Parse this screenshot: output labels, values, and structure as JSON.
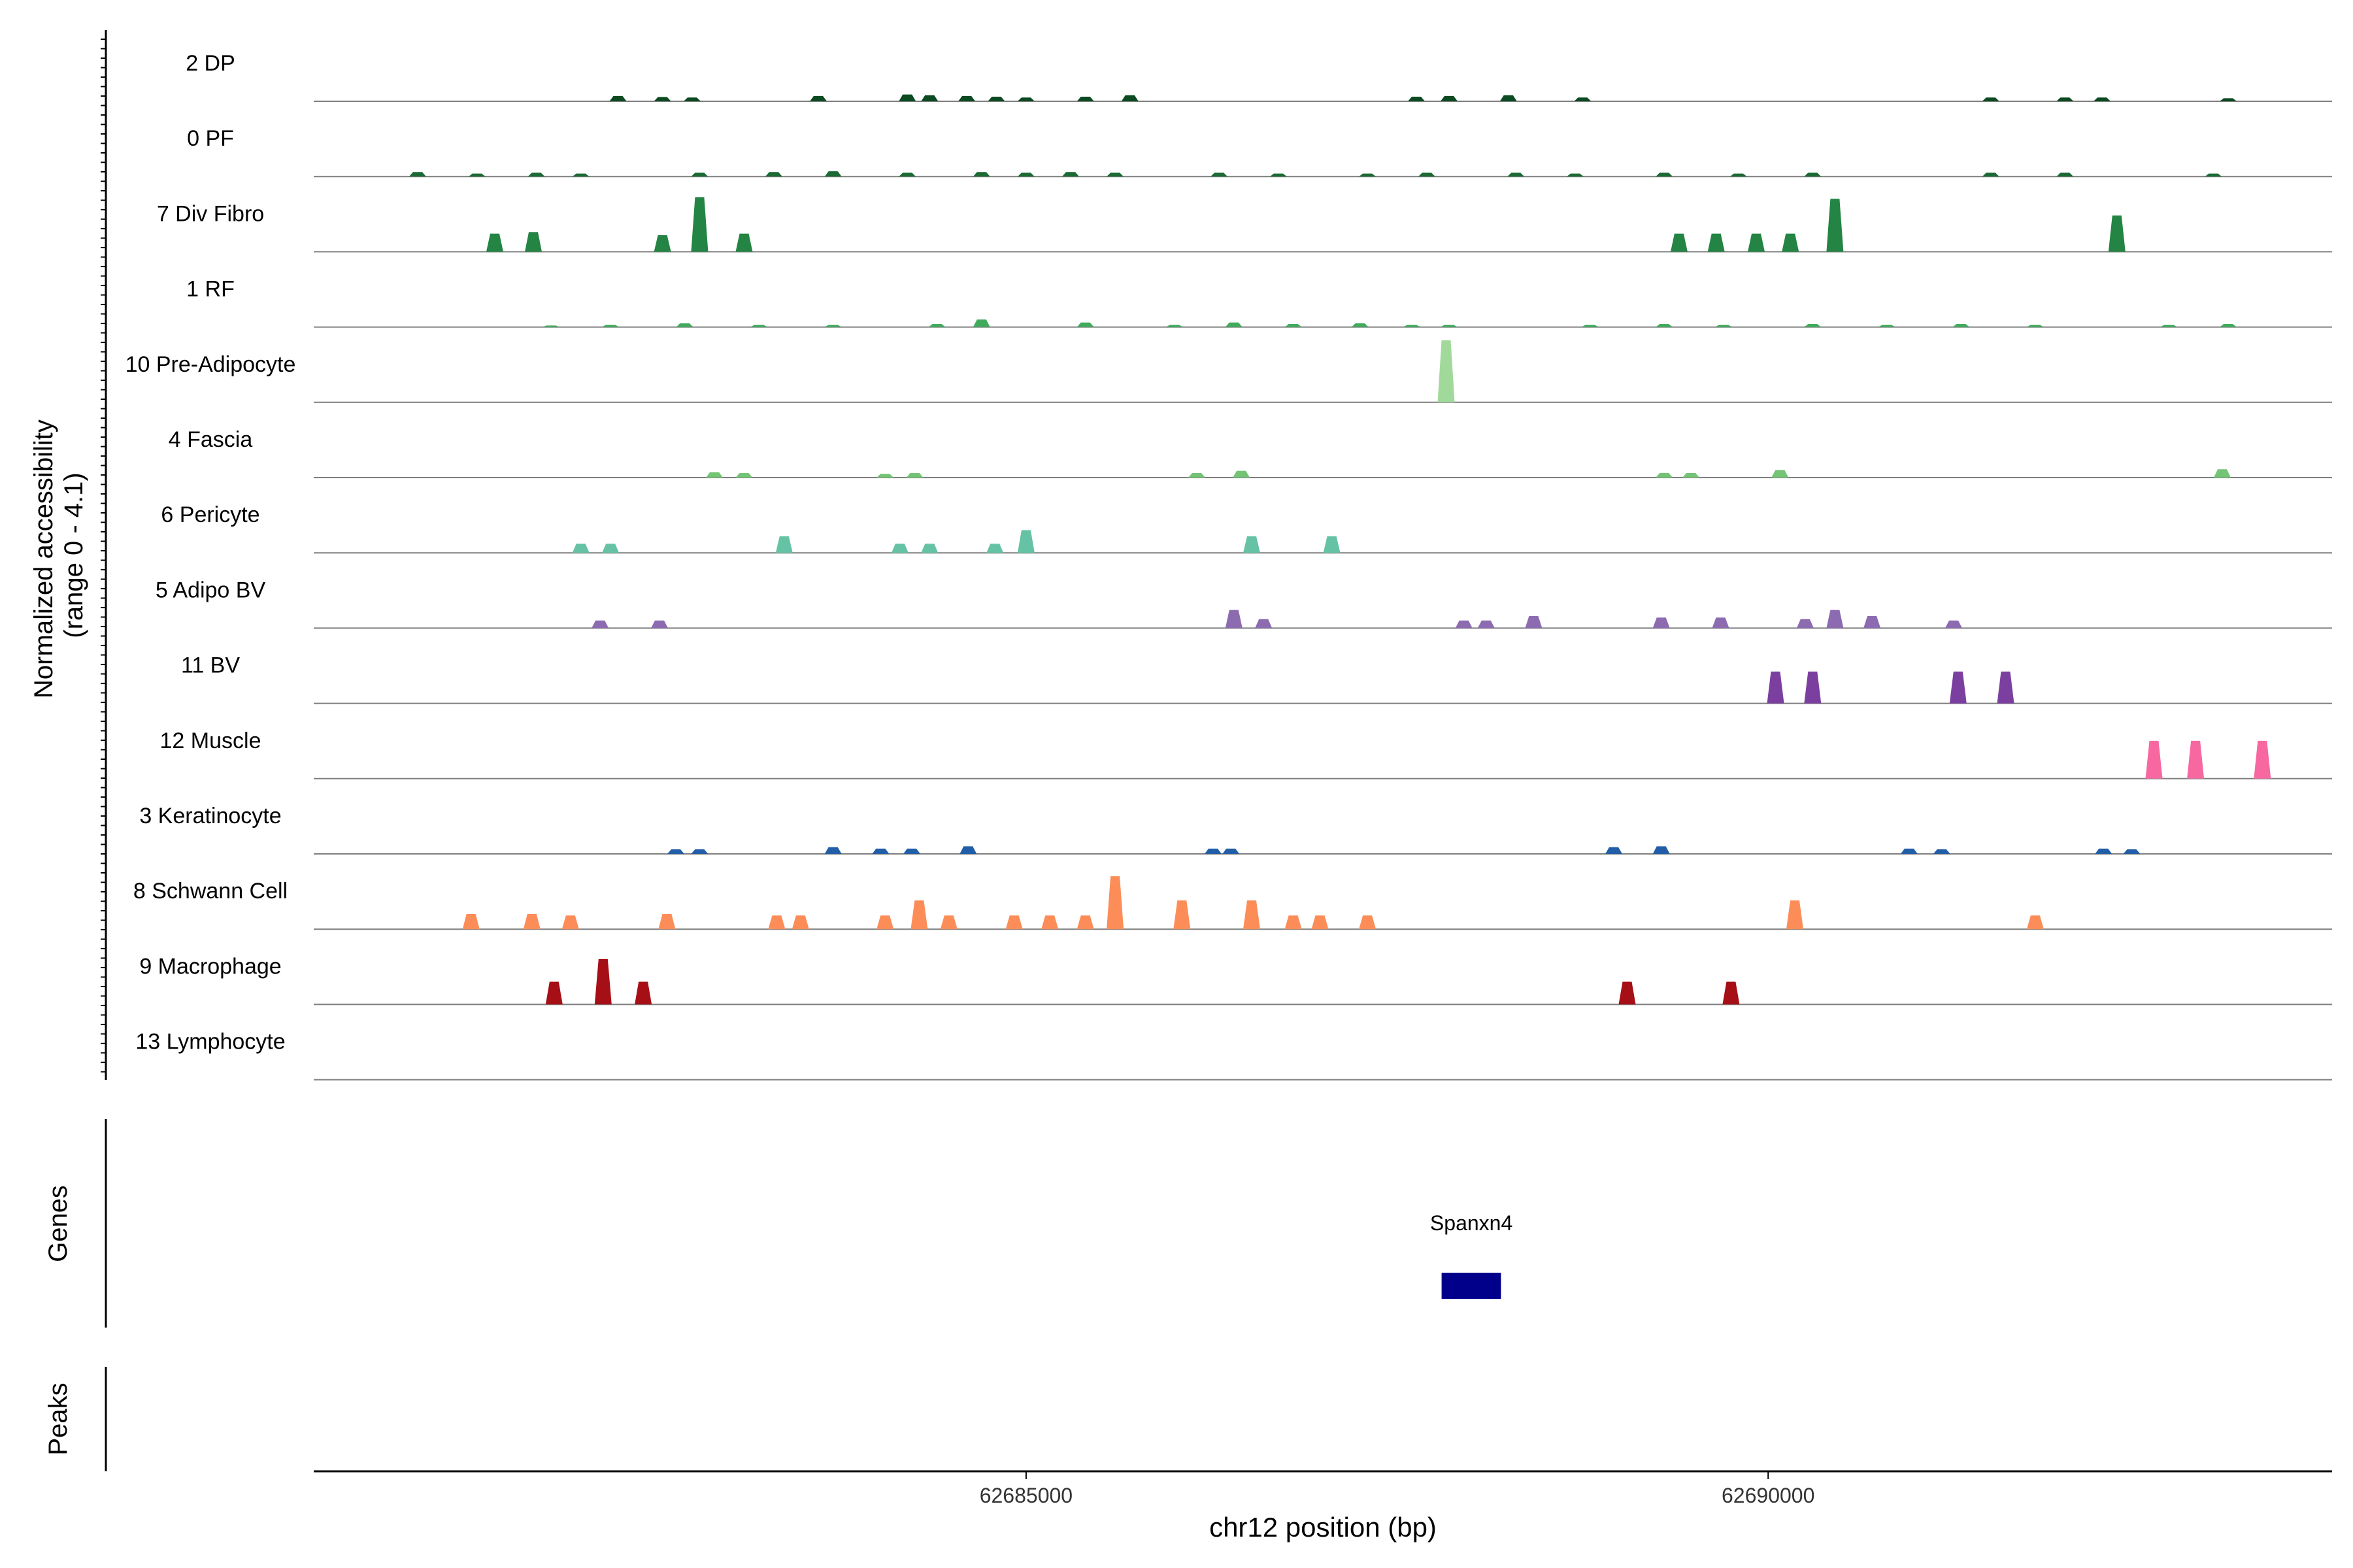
{
  "chart_data": {
    "type": "area",
    "title": "",
    "ylabel_lines": [
      "Normalized accessibility",
      "(range 0 - 4.1)"
    ],
    "xlabel": "chr12 position (bp)",
    "xlim": [
      62680200,
      62693800
    ],
    "x_ticks": [
      62685000,
      62690000
    ],
    "x_tick_labels": [
      "62685000",
      "62690000"
    ],
    "y_range": [
      0,
      4.1
    ],
    "grid": false,
    "legend": "none",
    "genes_panel_label": "Genes",
    "peaks_panel_label": "Peaks",
    "genes": [
      {
        "name": "Spanxn4",
        "start": 62687800,
        "end": 62688200,
        "color": "#00008b"
      }
    ],
    "tracks": [
      {
        "name": "2 DP",
        "color": "#0c4a21",
        "peaks": [
          [
            62682250,
            0.35
          ],
          [
            62682550,
            0.28
          ],
          [
            62682750,
            0.25
          ],
          [
            62683600,
            0.35
          ],
          [
            62684200,
            0.45
          ],
          [
            62684350,
            0.4
          ],
          [
            62684600,
            0.35
          ],
          [
            62684800,
            0.3
          ],
          [
            62685000,
            0.25
          ],
          [
            62685400,
            0.3
          ],
          [
            62685700,
            0.4
          ],
          [
            62687630,
            0.3
          ],
          [
            62687850,
            0.35
          ],
          [
            62688250,
            0.4
          ],
          [
            62688750,
            0.25
          ],
          [
            62691500,
            0.25
          ],
          [
            62692000,
            0.25
          ],
          [
            62692250,
            0.25
          ],
          [
            62693100,
            0.2
          ]
        ]
      },
      {
        "name": "0 PF",
        "color": "#1b6a34",
        "peaks": [
          [
            62680900,
            0.3
          ],
          [
            62681300,
            0.2
          ],
          [
            62681700,
            0.25
          ],
          [
            62682000,
            0.2
          ],
          [
            62682800,
            0.25
          ],
          [
            62683300,
            0.3
          ],
          [
            62683700,
            0.35
          ],
          [
            62684200,
            0.25
          ],
          [
            62684700,
            0.3
          ],
          [
            62685000,
            0.25
          ],
          [
            62685300,
            0.3
          ],
          [
            62685600,
            0.25
          ],
          [
            62686300,
            0.25
          ],
          [
            62686700,
            0.2
          ],
          [
            62687300,
            0.2
          ],
          [
            62687700,
            0.25
          ],
          [
            62688300,
            0.25
          ],
          [
            62688700,
            0.2
          ],
          [
            62689300,
            0.25
          ],
          [
            62689800,
            0.2
          ],
          [
            62690300,
            0.25
          ],
          [
            62691500,
            0.25
          ],
          [
            62692000,
            0.25
          ],
          [
            62693000,
            0.2
          ]
        ]
      },
      {
        "name": "7 Div Fibro",
        "color": "#238443",
        "peaks": [
          [
            62681420,
            1.2
          ],
          [
            62681680,
            1.3
          ],
          [
            62682550,
            1.1
          ],
          [
            62682800,
            3.6
          ],
          [
            62683100,
            1.2
          ],
          [
            62689400,
            1.2
          ],
          [
            62689650,
            1.2
          ],
          [
            62689920,
            1.2
          ],
          [
            62690150,
            1.2
          ],
          [
            62690450,
            3.5
          ],
          [
            62692350,
            2.4
          ]
        ]
      },
      {
        "name": "1 RF",
        "color": "#41ab5d",
        "peaks": [
          [
            62681800,
            0.1
          ],
          [
            62682200,
            0.15
          ],
          [
            62682700,
            0.25
          ],
          [
            62683200,
            0.15
          ],
          [
            62683700,
            0.15
          ],
          [
            62684400,
            0.2
          ],
          [
            62684700,
            0.5
          ],
          [
            62685400,
            0.3
          ],
          [
            62686000,
            0.15
          ],
          [
            62686400,
            0.3
          ],
          [
            62686800,
            0.2
          ],
          [
            62687250,
            0.25
          ],
          [
            62687600,
            0.15
          ],
          [
            62687850,
            0.15
          ],
          [
            62688800,
            0.15
          ],
          [
            62689300,
            0.2
          ],
          [
            62689700,
            0.15
          ],
          [
            62690300,
            0.2
          ],
          [
            62690800,
            0.15
          ],
          [
            62691300,
            0.2
          ],
          [
            62691800,
            0.15
          ],
          [
            62692700,
            0.15
          ],
          [
            62693100,
            0.2
          ]
        ]
      },
      {
        "name": "10 Pre-Adipocyte",
        "color": "#a1d99b",
        "peaks": [
          [
            62687830,
            4.1
          ]
        ]
      },
      {
        "name": "4 Fascia",
        "color": "#74c476",
        "peaks": [
          [
            62682900,
            0.35
          ],
          [
            62683100,
            0.3
          ],
          [
            62684050,
            0.25
          ],
          [
            62684250,
            0.3
          ],
          [
            62686150,
            0.3
          ],
          [
            62686450,
            0.45
          ],
          [
            62689300,
            0.3
          ],
          [
            62689480,
            0.3
          ],
          [
            62690080,
            0.5
          ],
          [
            62693060,
            0.55
          ]
        ]
      },
      {
        "name": "6 Pericyte",
        "color": "#66c2a4",
        "peaks": [
          [
            62682000,
            0.6
          ],
          [
            62682200,
            0.6
          ],
          [
            62683370,
            1.1
          ],
          [
            62684150,
            0.6
          ],
          [
            62684350,
            0.6
          ],
          [
            62684790,
            0.6
          ],
          [
            62685000,
            1.5
          ],
          [
            62686520,
            1.1
          ],
          [
            62687060,
            1.1
          ]
        ]
      },
      {
        "name": "5 Adipo BV",
        "color": "#8c6bb1",
        "peaks": [
          [
            62682130,
            0.5
          ],
          [
            62682530,
            0.5
          ],
          [
            62686400,
            1.2
          ],
          [
            62686600,
            0.6
          ],
          [
            62687950,
            0.5
          ],
          [
            62688100,
            0.5
          ],
          [
            62688420,
            0.8
          ],
          [
            62689280,
            0.7
          ],
          [
            62689680,
            0.7
          ],
          [
            62690250,
            0.6
          ],
          [
            62690450,
            1.2
          ],
          [
            62690700,
            0.8
          ],
          [
            62691250,
            0.5
          ]
        ]
      },
      {
        "name": "11 BV",
        "color": "#7b3fa0",
        "peaks": [
          [
            62690050,
            2.1
          ],
          [
            62690300,
            2.1
          ],
          [
            62691280,
            2.1
          ],
          [
            62691600,
            2.1
          ]
        ]
      },
      {
        "name": "12 Muscle",
        "color": "#f768a1",
        "peaks": [
          [
            62692600,
            2.5
          ],
          [
            62692880,
            2.5
          ],
          [
            62693330,
            2.5
          ]
        ]
      },
      {
        "name": "3 Keratinocyte",
        "color": "#225ea8",
        "peaks": [
          [
            62682640,
            0.3
          ],
          [
            62682800,
            0.3
          ],
          [
            62683700,
            0.45
          ],
          [
            62684020,
            0.35
          ],
          [
            62684230,
            0.35
          ],
          [
            62684610,
            0.5
          ],
          [
            62686260,
            0.35
          ],
          [
            62686380,
            0.35
          ],
          [
            62688960,
            0.45
          ],
          [
            62689280,
            0.5
          ],
          [
            62690950,
            0.35
          ],
          [
            62691170,
            0.3
          ],
          [
            62692260,
            0.35
          ],
          [
            62692450,
            0.3
          ]
        ]
      },
      {
        "name": "8 Schwann Cell",
        "color": "#fc8d59",
        "peaks": [
          [
            62681260,
            1.0
          ],
          [
            62681670,
            1.0
          ],
          [
            62681930,
            0.9
          ],
          [
            62682580,
            1.0
          ],
          [
            62683320,
            0.9
          ],
          [
            62683480,
            0.9
          ],
          [
            62684050,
            0.9
          ],
          [
            62684280,
            1.9
          ],
          [
            62684480,
            0.9
          ],
          [
            62684920,
            0.9
          ],
          [
            62685160,
            0.9
          ],
          [
            62685400,
            0.9
          ],
          [
            62685600,
            3.5
          ],
          [
            62686050,
            1.9
          ],
          [
            62686520,
            1.9
          ],
          [
            62686800,
            0.9
          ],
          [
            62686980,
            0.9
          ],
          [
            62687300,
            0.9
          ],
          [
            62690180,
            1.9
          ],
          [
            62691800,
            0.9
          ]
        ]
      },
      {
        "name": "9 Macrophage",
        "color": "#a50f15",
        "peaks": [
          [
            62681820,
            1.5
          ],
          [
            62682150,
            3.0
          ],
          [
            62682420,
            1.5
          ],
          [
            62689050,
            1.5
          ],
          [
            62689750,
            1.5
          ]
        ]
      },
      {
        "name": "13 Lymphocyte",
        "color": "#999999",
        "peaks": []
      }
    ]
  }
}
